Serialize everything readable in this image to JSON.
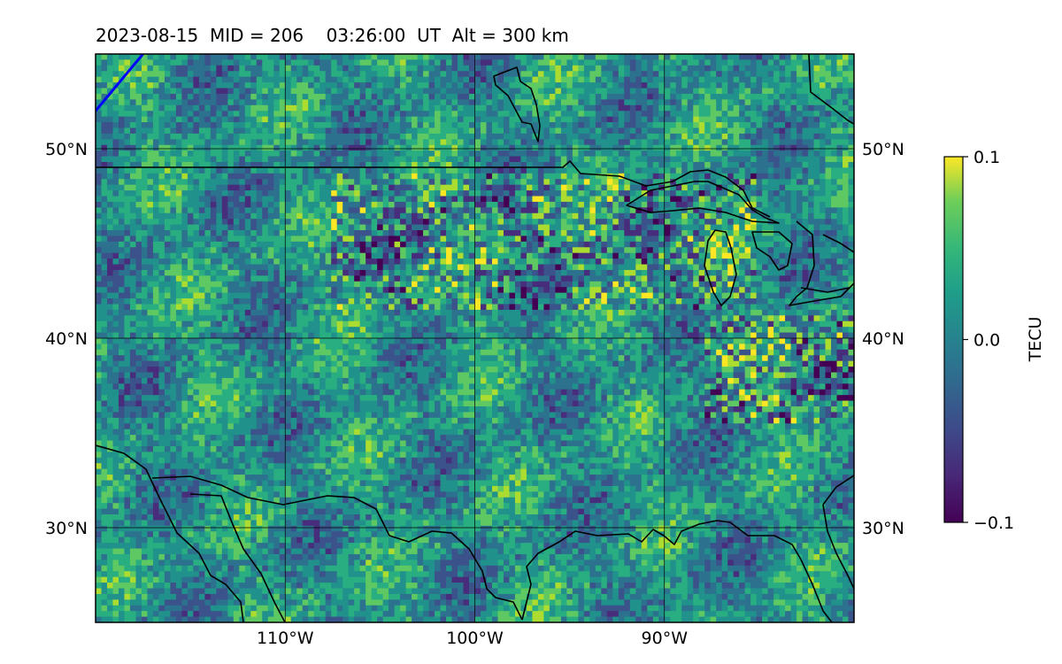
{
  "title": "2023-08-15  MID = 206    03:26:00  UT  Alt = 300 km",
  "map": {
    "lon_range": [
      -120,
      -80
    ],
    "lat_range": [
      25,
      55
    ],
    "lat_ticks": [
      {
        "value": 50,
        "label": "50°N"
      },
      {
        "value": 40,
        "label": "40°N"
      },
      {
        "value": 30,
        "label": "30°N"
      }
    ],
    "lon_ticks": [
      {
        "value": -110,
        "label": "110°W"
      },
      {
        "value": -100,
        "label": "100°W"
      },
      {
        "value": -90,
        "label": "90°W"
      }
    ],
    "gridlines": true,
    "colormap": "viridis",
    "blue_line": [
      [
        -120,
        52
      ],
      [
        -117.5,
        55
      ]
    ]
  },
  "colorbar": {
    "label": "TECU",
    "min": -0.1,
    "max": 0.1,
    "ticks": [
      {
        "value": 0.1,
        "label": "0.1"
      },
      {
        "value": 0.0,
        "label": "0.0"
      },
      {
        "value": -0.1,
        "label": "−0.1"
      }
    ]
  }
}
